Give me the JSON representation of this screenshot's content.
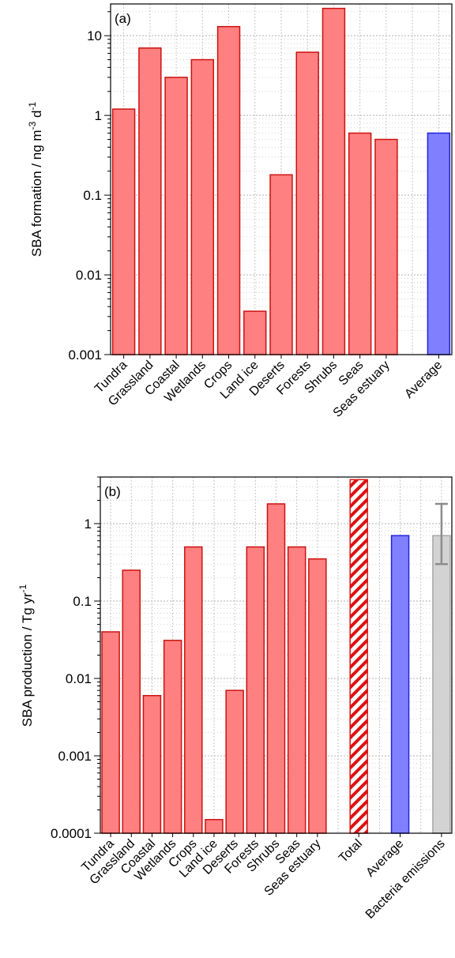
{
  "chart_data": [
    {
      "type": "bar",
      "panel_label": "(a)",
      "ylabel": "SBA formation / ng m",
      "ylabel_unit_parts": [
        {
          "text": "SBA formation / ng m",
          "sup": false
        },
        {
          "text": "-3",
          "sup": true
        },
        {
          "text": " d",
          "sup": false
        },
        {
          "text": "-1",
          "sup": true
        }
      ],
      "yscale": "log",
      "ylim": [
        0.001,
        25
      ],
      "yticks": [
        0.001,
        0.01,
        0.1,
        1,
        10
      ],
      "ytick_labels": [
        "0.001",
        "0.01",
        "0.1",
        "1",
        "10"
      ],
      "grid": true,
      "categories": [
        "Tundra",
        "Grassland",
        "Coastal",
        "Wetlands",
        "Crops",
        "Land ice",
        "Deserts",
        "Forests",
        "Shrubs",
        "Seas",
        "Seas estuary",
        "",
        "Average"
      ],
      "values": [
        1.2,
        7,
        3,
        5,
        13,
        0.0035,
        0.18,
        6.2,
        22,
        0.6,
        0.5,
        null,
        0.6
      ],
      "bar_styles": [
        "red",
        "red",
        "red",
        "red",
        "red",
        "red",
        "red",
        "red",
        "red",
        "red",
        "red",
        "none",
        "blue"
      ]
    },
    {
      "type": "bar",
      "panel_label": "(b)",
      "ylabel": "SBA production / Tg yr",
      "ylabel_unit_parts": [
        {
          "text": "SBA production / Tg yr",
          "sup": false
        },
        {
          "text": "-1",
          "sup": true
        }
      ],
      "yscale": "log",
      "ylim": [
        0.0001,
        4
      ],
      "yticks": [
        0.0001,
        0.001,
        0.01,
        0.1,
        1
      ],
      "ytick_labels": [
        "0.0001",
        "0.001",
        "0.01",
        "0.1",
        "1"
      ],
      "grid": true,
      "categories": [
        "Tundra",
        "Grassland",
        "Coastal",
        "Wetlands",
        "Crops",
        "Land ice",
        "Deserts",
        "Forests",
        "Shrubs",
        "Seas",
        "Seas estuary",
        "",
        "Total",
        "",
        "Average",
        "",
        "Bacteria emissions"
      ],
      "values": [
        0.04,
        0.25,
        0.006,
        0.031,
        0.5,
        0.00015,
        0.007,
        0.5,
        1.8,
        0.5,
        0.35,
        null,
        3.7,
        null,
        0.7,
        null,
        0.7
      ],
      "bar_styles": [
        "red",
        "red",
        "red",
        "red",
        "red",
        "red",
        "red",
        "red",
        "red",
        "red",
        "red",
        "none",
        "hatch",
        "none",
        "blue",
        "none",
        "gray"
      ],
      "error_bars": [
        {
          "category": "Bacteria emissions",
          "low": 0.3,
          "high": 1.8
        }
      ]
    }
  ],
  "colors": {
    "red_fill": "#ff8080",
    "red_edge": "#cc1111",
    "blue_fill": "#8080ff",
    "blue_edge": "#2222dd",
    "gray_fill": "#d3d3d3",
    "gray_edge": "#a8a8a8",
    "hatch_color": "#dd1111",
    "errorbar": "#8c8c8c",
    "grid": "#bdbdbd"
  }
}
